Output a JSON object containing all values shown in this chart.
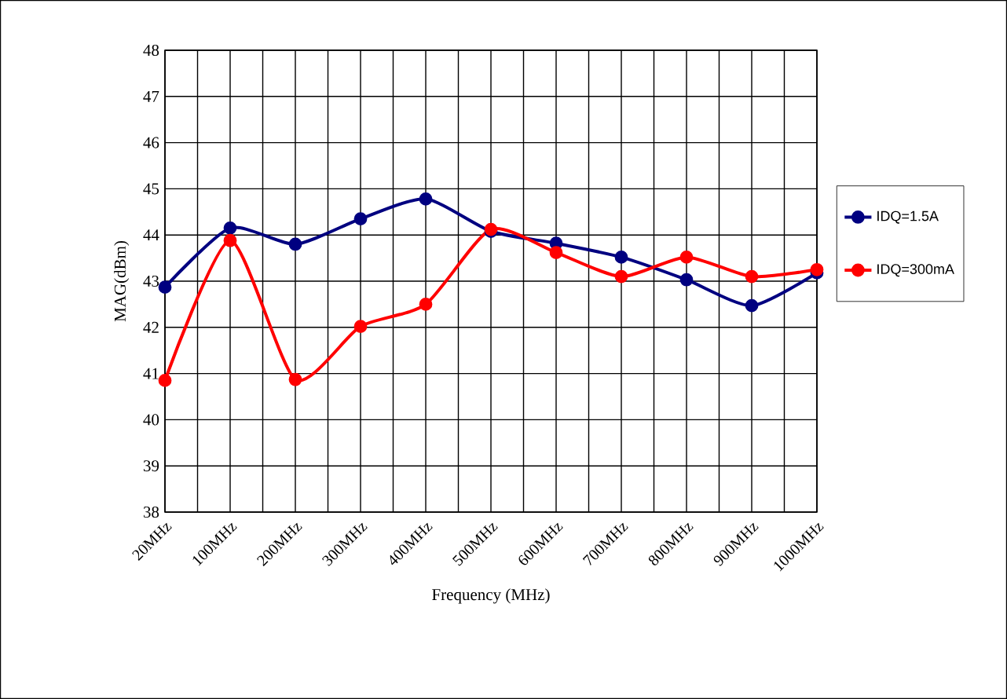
{
  "chart_data": {
    "type": "line",
    "xlabel": "Frequency (MHz)",
    "ylabel": "MAG(dBm)",
    "categories": [
      "20MHz",
      "100MHz",
      "200MHz",
      "300MHz",
      "400MHz",
      "500MHz",
      "600MHz",
      "700MHz",
      "800MHz",
      "900MHz",
      "1000MHz"
    ],
    "series": [
      {
        "name": "IDQ=1.5A",
        "color": "#000080",
        "values": [
          42.87,
          44.15,
          43.8,
          44.35,
          44.78,
          44.08,
          43.82,
          43.52,
          43.03,
          42.47,
          43.18
        ]
      },
      {
        "name": "IDQ=300mA",
        "color": "#ff0000",
        "values": [
          40.85,
          43.88,
          40.87,
          42.02,
          42.5,
          44.12,
          43.62,
          43.1,
          43.52,
          43.1,
          43.25
        ]
      }
    ],
    "ylim": [
      38,
      48
    ],
    "yticks": [
      38,
      39,
      40,
      41,
      42,
      43,
      44,
      45,
      46,
      47,
      48
    ],
    "grid": true,
    "legend": "right",
    "marker": "circle",
    "line_style": "solid"
  }
}
